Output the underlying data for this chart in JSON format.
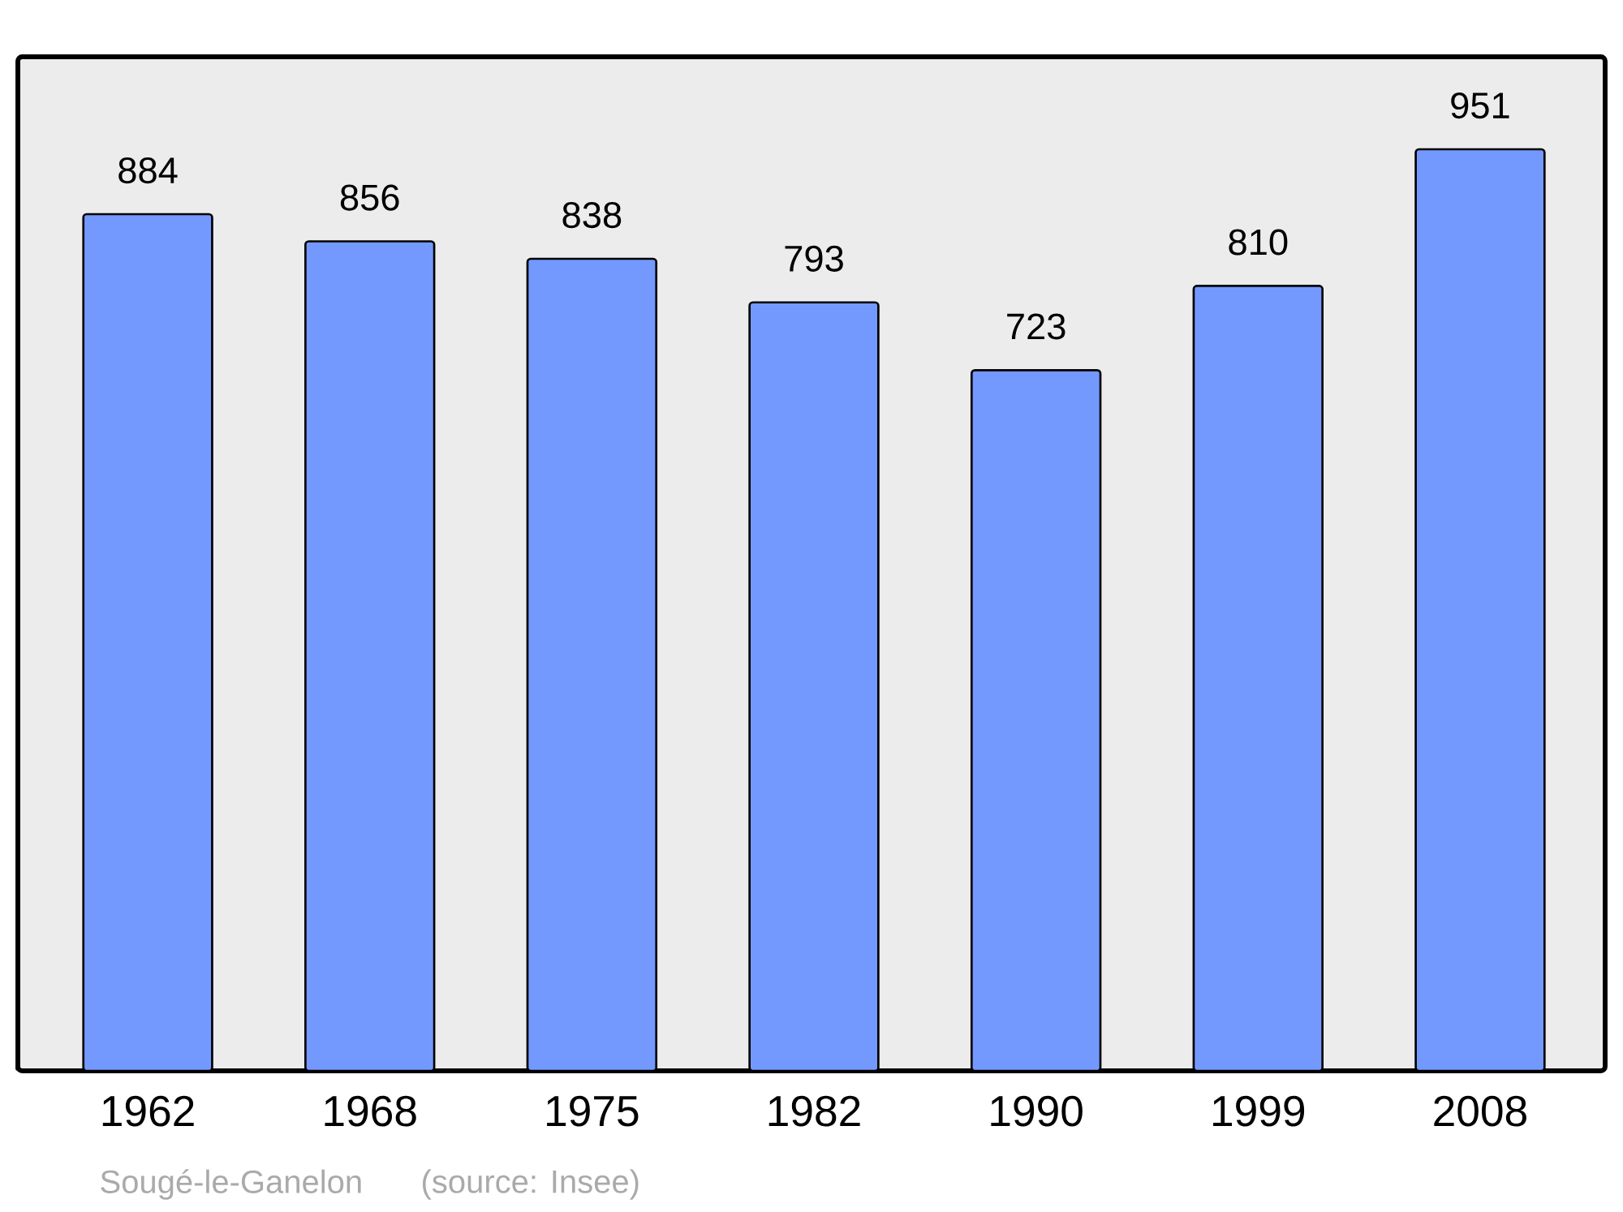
{
  "chart_data": {
    "type": "bar",
    "categories": [
      "1962",
      "1968",
      "1975",
      "1982",
      "1990",
      "1999",
      "2008"
    ],
    "values": [
      884,
      856,
      838,
      793,
      723,
      810,
      951
    ],
    "color": "#7399ff",
    "data_labels": true,
    "annotations": [
      "Sougé-le-Ganelon",
      "(source: Insee)"
    ]
  }
}
